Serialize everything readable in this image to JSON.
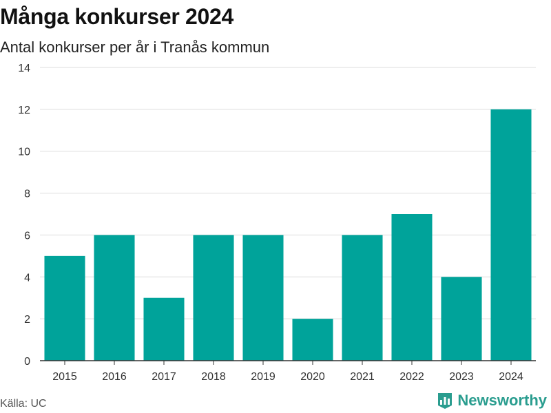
{
  "title": "Många konkurser 2024",
  "subtitle": "Antal konkurser per år i Tranås kommun",
  "source": "Källa: UC",
  "brand": {
    "name": "Newsworthy",
    "icon": "bar-chart-logo-icon",
    "color": "#2a9d8f"
  },
  "colors": {
    "bar": "#00a39a",
    "grid": "#dddddd",
    "axis": "#333333"
  },
  "chart_data": {
    "type": "bar",
    "categories": [
      "2015",
      "2016",
      "2017",
      "2018",
      "2019",
      "2020",
      "2021",
      "2022",
      "2023",
      "2024"
    ],
    "values": [
      5,
      6,
      3,
      6,
      6,
      2,
      6,
      7,
      4,
      12
    ],
    "ylim": [
      0,
      14
    ],
    "yticks": [
      0,
      2,
      4,
      6,
      8,
      10,
      12,
      14
    ],
    "grid": true,
    "legend": "none"
  }
}
